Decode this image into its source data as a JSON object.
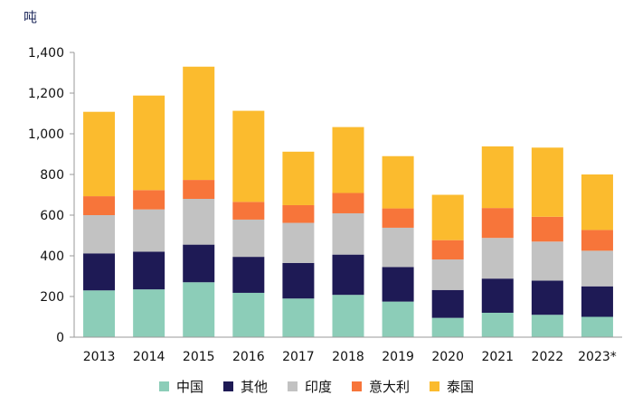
{
  "chart_data": {
    "type": "bar",
    "stacked": true,
    "ylabel": "吨",
    "ylim": [
      0,
      1400
    ],
    "yticks": [
      "0",
      "200",
      "400",
      "600",
      "800",
      "1,000",
      "1,200",
      "1,400"
    ],
    "ytick_values": [
      0,
      200,
      400,
      600,
      800,
      1000,
      1200,
      1400
    ],
    "categories": [
      "2013",
      "2014",
      "2015",
      "2016",
      "2017",
      "2018",
      "2019",
      "2020",
      "2021",
      "2022",
      "2023*"
    ],
    "series": [
      {
        "name": "中国",
        "color": "#8ccdb8",
        "values": [
          230,
          235,
          270,
          218,
          190,
          208,
          175,
          95,
          120,
          110,
          100
        ]
      },
      {
        "name": "其他",
        "color": "#1e1a55",
        "values": [
          182,
          185,
          185,
          177,
          175,
          198,
          170,
          137,
          168,
          168,
          150
        ]
      },
      {
        "name": "印度",
        "color": "#c2c2c2",
        "values": [
          188,
          208,
          225,
          183,
          197,
          203,
          193,
          150,
          200,
          192,
          175
        ]
      },
      {
        "name": "意大利",
        "color": "#f7753a",
        "values": [
          93,
          95,
          93,
          87,
          87,
          100,
          95,
          95,
          147,
          122,
          102
        ]
      },
      {
        "name": "泰国",
        "color": "#fbbb2e",
        "values": [
          415,
          465,
          557,
          448,
          263,
          324,
          257,
          223,
          303,
          340,
          273
        ]
      }
    ]
  }
}
